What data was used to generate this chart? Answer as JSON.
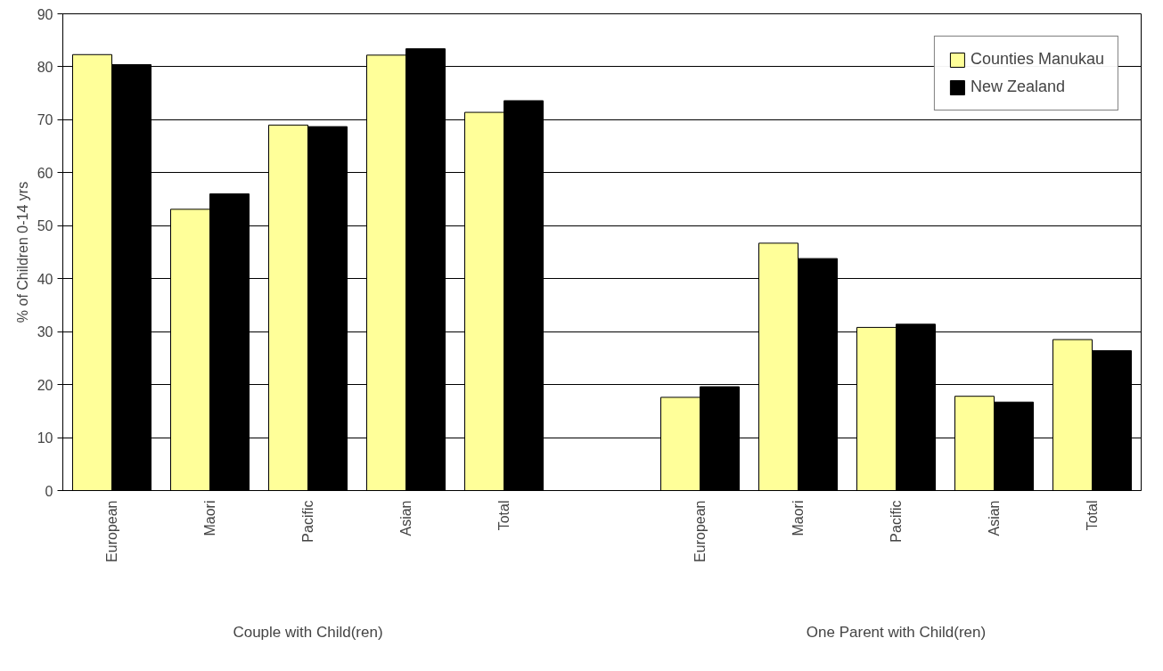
{
  "chart_data": {
    "type": "bar",
    "ylabel": "% of Children 0-14 yrs",
    "categories": [
      "European",
      "Maori",
      "Pacific",
      "Asian",
      "Total",
      null,
      "European",
      "Maori",
      "Pacific",
      "Asian",
      "Total"
    ],
    "series": [
      {
        "name": "Counties Manukau",
        "color": "#ffff99",
        "values": [
          82.3,
          53.1,
          69.0,
          82.2,
          71.4,
          null,
          17.6,
          46.7,
          30.8,
          17.8,
          28.5
        ]
      },
      {
        "name": "New Zealand",
        "color": "#000000",
        "values": [
          80.4,
          56.0,
          68.7,
          83.4,
          73.6,
          null,
          19.6,
          43.8,
          31.4,
          16.7,
          26.4
        ]
      }
    ],
    "annotations": [
      "Couple with Child(ren)",
      "One Parent with Child(ren)"
    ],
    "ylim": [
      0,
      90
    ],
    "yticks": [
      0,
      10,
      20,
      30,
      40,
      50,
      60,
      70,
      80,
      90
    ],
    "grid": "y",
    "legend": "top right"
  }
}
